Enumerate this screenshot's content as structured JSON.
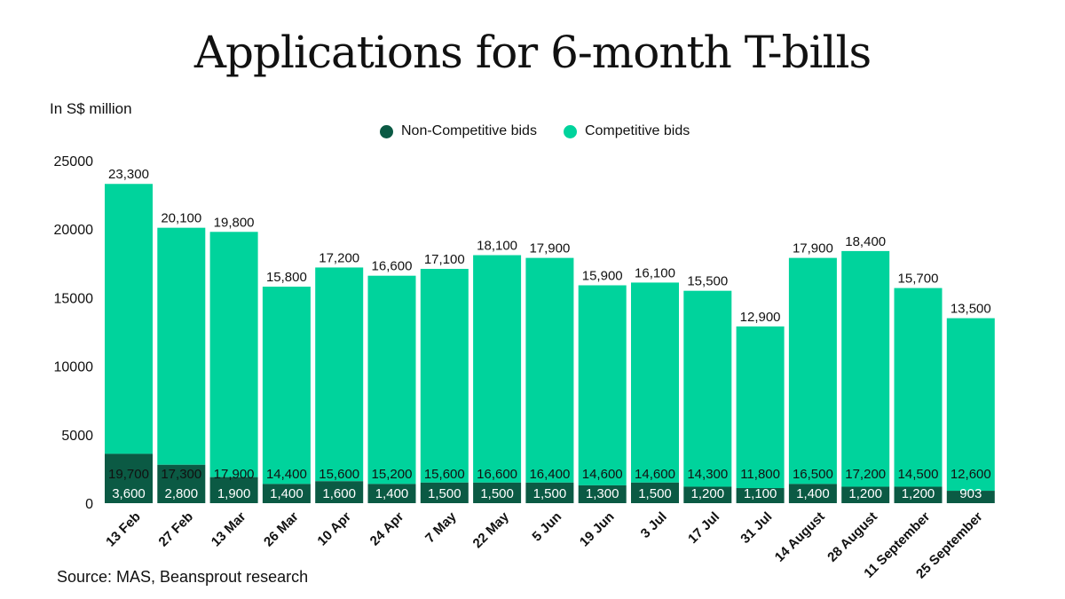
{
  "chart_data": {
    "type": "bar",
    "stacked": true,
    "title": "Applications for 6-month T-bills",
    "ylabel": "In S$ million",
    "ylim": [
      0,
      25000
    ],
    "yticks": [
      "25000",
      "20000",
      "15000",
      "10000",
      "5000",
      "0"
    ],
    "legend_position": "top-center",
    "categories": [
      "13 Feb",
      "27 Feb",
      "13 Mar",
      "26 Mar",
      "10 Apr",
      "24 Apr",
      "7 May",
      "22 May",
      "5 Jun",
      "19 Jun",
      "3 Jul",
      "17 Jul",
      "31 Jul",
      "14 August",
      "28 August",
      "11 September",
      "25 September"
    ],
    "series": [
      {
        "name": "Non-Competitive bids",
        "color": "#0b5a44",
        "values": [
          3600,
          2800,
          1900,
          1400,
          1600,
          1400,
          1500,
          1500,
          1500,
          1300,
          1500,
          1200,
          1100,
          1400,
          1200,
          1200,
          903
        ],
        "labels": [
          "3,600",
          "2,800",
          "1,900",
          "1,400",
          "1,600",
          "1,400",
          "1,500",
          "1,500",
          "1,500",
          "1,300",
          "1,500",
          "1,200",
          "1,100",
          "1,400",
          "1,200",
          "1,200",
          "903"
        ]
      },
      {
        "name": "Competitive bids",
        "color": "#00d39c",
        "values": [
          19700,
          17300,
          17900,
          14400,
          15600,
          15200,
          15600,
          16600,
          16400,
          14600,
          14600,
          14300,
          11800,
          16500,
          17200,
          14500,
          12600
        ],
        "labels": [
          "19,700",
          "17,300",
          "17,900",
          "14,400",
          "15,600",
          "15,200",
          "15,600",
          "16,600",
          "16,400",
          "14,600",
          "14,600",
          "14,300",
          "11,800",
          "16,500",
          "17,200",
          "14,500",
          "12,600"
        ]
      }
    ],
    "totals": [
      23300,
      20100,
      19800,
      15800,
      17200,
      16600,
      17100,
      18100,
      17900,
      15900,
      16100,
      15500,
      12900,
      17900,
      18400,
      15700,
      13500
    ],
    "total_labels": [
      "23,300",
      "20,100",
      "19,800",
      "15,800",
      "17,200",
      "16,600",
      "17,100",
      "18,100",
      "17,900",
      "15,900",
      "16,100",
      "15,500",
      "12,900",
      "17,900",
      "18,400",
      "15,700",
      "13,500"
    ]
  },
  "source": "Source: MAS, Beansprout research"
}
